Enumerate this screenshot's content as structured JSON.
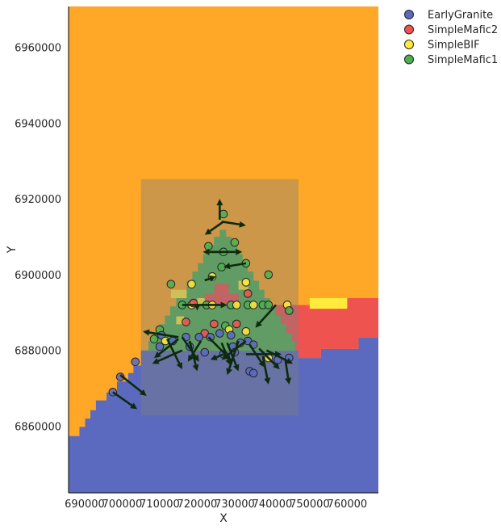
{
  "chart_data": {
    "type": "scatter",
    "xlabel": "X",
    "ylabel": "Y",
    "xlim": [
      685700,
      768300
    ],
    "ylim": [
      6842400,
      6970800
    ],
    "grid": false,
    "legend_placement": "outside-top-right",
    "xticks": [
      {
        "value": 690000,
        "label": "690000"
      },
      {
        "value": 700000,
        "label": "700000"
      },
      {
        "value": 710000,
        "label": "710000"
      },
      {
        "value": 720000,
        "label": "720000"
      },
      {
        "value": 730000,
        "label": "730000"
      },
      {
        "value": 740000,
        "label": "740000"
      },
      {
        "value": 750000,
        "label": "750000"
      },
      {
        "value": 760000,
        "label": "760000"
      }
    ],
    "yticks": [
      {
        "value": 6860000,
        "label": "6860000"
      },
      {
        "value": 6880000,
        "label": "6880000"
      },
      {
        "value": 6900000,
        "label": "6900000"
      },
      {
        "value": 6920000,
        "label": "6920000"
      },
      {
        "value": 6940000,
        "label": "6940000"
      },
      {
        "value": 6960000,
        "label": "6960000"
      }
    ],
    "units": [
      {
        "name": "EarlyGranite",
        "color": "#5b6abf"
      },
      {
        "name": "SimpleMafic2",
        "color": "#ef5350"
      },
      {
        "name": "SimpleBIF",
        "color": "#ffeb3b"
      },
      {
        "name": "SimpleMafic1",
        "color": "#4caf50"
      }
    ],
    "background_color": "#ffa726",
    "region_box": {
      "x": [
        705000,
        747000
      ],
      "y": [
        6862800,
        6925200
      ],
      "color": "#808080",
      "opacity": 0.4
    },
    "granite_boundary": [
      [
        685700,
        6857400
      ],
      [
        688600,
        6857400
      ],
      [
        688600,
        6859800
      ],
      [
        690100,
        6859800
      ],
      [
        690100,
        6862000
      ],
      [
        691500,
        6862000
      ],
      [
        691500,
        6864200
      ],
      [
        693000,
        6864200
      ],
      [
        693000,
        6866800
      ],
      [
        695800,
        6866800
      ],
      [
        695800,
        6868900
      ],
      [
        698600,
        6868900
      ],
      [
        698600,
        6871800
      ],
      [
        701600,
        6871800
      ],
      [
        701600,
        6874000
      ],
      [
        703000,
        6874000
      ],
      [
        703000,
        6876000
      ],
      [
        705000,
        6876000
      ],
      [
        705000,
        6880000
      ],
      [
        747000,
        6880000
      ],
      [
        747000,
        6878000
      ],
      [
        753000,
        6878000
      ],
      [
        753000,
        6880400
      ],
      [
        763000,
        6880400
      ],
      [
        763000,
        6883400
      ],
      [
        768300,
        6883400
      ],
      [
        768300,
        6842400
      ],
      [
        685700,
        6842400
      ]
    ],
    "mafic2_polygon": [
      [
        716000,
        6892000
      ],
      [
        750000,
        6892000
      ],
      [
        750000,
        6891000
      ],
      [
        760000,
        6891000
      ],
      [
        760000,
        6893800
      ],
      [
        768300,
        6893800
      ],
      [
        768300,
        6883400
      ],
      [
        763000,
        6883400
      ],
      [
        763000,
        6880400
      ],
      [
        753000,
        6880400
      ],
      [
        753000,
        6878000
      ],
      [
        747000,
        6878000
      ],
      [
        747000,
        6880000
      ],
      [
        716000,
        6880000
      ]
    ],
    "bif_polygon": [
      [
        750000,
        6891000
      ],
      [
        760000,
        6891000
      ],
      [
        760000,
        6893800
      ],
      [
        750000,
        6893800
      ]
    ],
    "mafic1_steps": [
      {
        "x": [
          726000,
          727600
        ],
        "y": [
          6910000,
          6911800
        ]
      },
      {
        "x": [
          724500,
          729100
        ],
        "y": [
          6907800,
          6910000
        ]
      },
      {
        "x": [
          723000,
          730600
        ],
        "y": [
          6905400,
          6907800
        ]
      },
      {
        "x": [
          721600,
          732000
        ],
        "y": [
          6903000,
          6905400
        ]
      },
      {
        "x": [
          720200,
          733400
        ],
        "y": [
          6900800,
          6903000
        ]
      },
      {
        "x": [
          718700,
          734900
        ],
        "y": [
          6898400,
          6900800
        ]
      },
      {
        "x": [
          717200,
          736400
        ],
        "y": [
          6896000,
          6898400
        ]
      },
      {
        "x": [
          715800,
          737800
        ],
        "y": [
          6893800,
          6896000
        ]
      },
      {
        "x": [
          714400,
          739300
        ],
        "y": [
          6891600,
          6893800
        ]
      },
      {
        "x": [
          712800,
          740700
        ],
        "y": [
          6889200,
          6891600
        ]
      },
      {
        "x": [
          711400,
          742200
        ],
        "y": [
          6886900,
          6889200
        ]
      },
      {
        "x": [
          709900,
          743600
        ],
        "y": [
          6884600,
          6886900
        ]
      },
      {
        "x": [
          708500,
          745100
        ],
        "y": [
          6882400,
          6884600
        ]
      },
      {
        "x": [
          707000,
          746000
        ],
        "y": [
          6880000,
          6882400
        ]
      }
    ],
    "mafic2_dome": [
      {
        "x": [
          724600,
          728400
        ],
        "y": [
          6895000,
          6897600
        ]
      },
      {
        "x": [
          722000,
          731000
        ],
        "y": [
          6892000,
          6895000
        ]
      }
    ],
    "bif_band": [
      {
        "x": [
          713000,
          717200
        ],
        "y": [
          6893800,
          6896000
        ]
      },
      {
        "x": [
          720000,
          722000
        ],
        "y": [
          6891800,
          6893800
        ]
      },
      {
        "x": [
          731000,
          733600
        ],
        "y": [
          6896000,
          6898400
        ]
      },
      {
        "x": [
          714400,
          716500
        ],
        "y": [
          6886900,
          6889000
        ]
      }
    ],
    "points": [
      {
        "unit": "SimpleMafic1",
        "x": 727000,
        "y": 6916000
      },
      {
        "unit": "SimpleMafic1",
        "x": 723000,
        "y": 6907500
      },
      {
        "unit": "SimpleMafic1",
        "x": 730000,
        "y": 6908500
      },
      {
        "unit": "SimpleMafic1",
        "x": 727000,
        "y": 6906000
      },
      {
        "unit": "SimpleMafic1",
        "x": 733000,
        "y": 6903000
      },
      {
        "unit": "SimpleMafic1",
        "x": 726500,
        "y": 6902000
      },
      {
        "unit": "SimpleMafic1",
        "x": 739000,
        "y": 6900000
      },
      {
        "unit": "SimpleBIF",
        "x": 724000,
        "y": 6899500
      },
      {
        "unit": "SimpleMafic1",
        "x": 713000,
        "y": 6897500
      },
      {
        "unit": "SimpleBIF",
        "x": 718500,
        "y": 6897500
      },
      {
        "unit": "SimpleBIF",
        "x": 733000,
        "y": 6898000
      },
      {
        "unit": "SimpleMafic2",
        "x": 733500,
        "y": 6895000
      },
      {
        "unit": "SimpleMafic1",
        "x": 716000,
        "y": 6892000
      },
      {
        "unit": "SimpleBIF",
        "x": 718500,
        "y": 6892000
      },
      {
        "unit": "SimpleMafic2",
        "x": 719000,
        "y": 6892500
      },
      {
        "unit": "SimpleMafic1",
        "x": 722500,
        "y": 6892000
      },
      {
        "unit": "SimpleBIF",
        "x": 724000,
        "y": 6892000
      },
      {
        "unit": "SimpleMafic1",
        "x": 729000,
        "y": 6892000
      },
      {
        "unit": "SimpleBIF",
        "x": 730500,
        "y": 6892000
      },
      {
        "unit": "SimpleMafic1",
        "x": 733500,
        "y": 6892000
      },
      {
        "unit": "SimpleBIF",
        "x": 735000,
        "y": 6892000
      },
      {
        "unit": "SimpleMafic1",
        "x": 737500,
        "y": 6892000
      },
      {
        "unit": "SimpleMafic1",
        "x": 739000,
        "y": 6892000
      },
      {
        "unit": "SimpleBIF",
        "x": 744000,
        "y": 6892000
      },
      {
        "unit": "SimpleMafic1",
        "x": 744500,
        "y": 6890500
      },
      {
        "unit": "SimpleMafic2",
        "x": 717000,
        "y": 6887500
      },
      {
        "unit": "SimpleMafic2",
        "x": 724500,
        "y": 6887000
      },
      {
        "unit": "SimpleMafic1",
        "x": 727500,
        "y": 6886500
      },
      {
        "unit": "SimpleMafic2",
        "x": 730500,
        "y": 6887000
      },
      {
        "unit": "SimpleBIF",
        "x": 728500,
        "y": 6885500
      },
      {
        "unit": "SimpleMafic1",
        "x": 710000,
        "y": 6885500
      },
      {
        "unit": "SimpleBIF",
        "x": 733000,
        "y": 6885000
      },
      {
        "unit": "SimpleMafic2",
        "x": 722000,
        "y": 6884500
      },
      {
        "unit": "SimpleMafic1",
        "x": 708500,
        "y": 6883000
      },
      {
        "unit": "EarlyGranite",
        "x": 710500,
        "y": 6884000
      },
      {
        "unit": "SimpleBIF",
        "x": 711500,
        "y": 6882500
      },
      {
        "unit": "EarlyGranite",
        "x": 713500,
        "y": 6882500
      },
      {
        "unit": "EarlyGranite",
        "x": 717000,
        "y": 6883500
      },
      {
        "unit": "EarlyGranite",
        "x": 720500,
        "y": 6883500
      },
      {
        "unit": "EarlyGranite",
        "x": 723500,
        "y": 6883500
      },
      {
        "unit": "EarlyGranite",
        "x": 726000,
        "y": 6884500
      },
      {
        "unit": "EarlyGranite",
        "x": 729000,
        "y": 6884000
      },
      {
        "unit": "EarlyGranite",
        "x": 733500,
        "y": 6882500
      },
      {
        "unit": "EarlyGranite",
        "x": 731500,
        "y": 6882000
      },
      {
        "unit": "EarlyGranite",
        "x": 735000,
        "y": 6881500
      },
      {
        "unit": "EarlyGranite",
        "x": 718000,
        "y": 6881000
      },
      {
        "unit": "EarlyGranite",
        "x": 710000,
        "y": 6881000
      },
      {
        "unit": "EarlyGranite",
        "x": 729500,
        "y": 6881000
      },
      {
        "unit": "EarlyGranite",
        "x": 722000,
        "y": 6879500
      },
      {
        "unit": "EarlyGranite",
        "x": 727000,
        "y": 6879000
      },
      {
        "unit": "EarlyGranite",
        "x": 730000,
        "y": 6879500
      },
      {
        "unit": "SimpleBIF",
        "x": 739000,
        "y": 6878000
      },
      {
        "unit": "EarlyGranite",
        "x": 741500,
        "y": 6877500
      },
      {
        "unit": "EarlyGranite",
        "x": 744500,
        "y": 6878000
      },
      {
        "unit": "EarlyGranite",
        "x": 703500,
        "y": 6877000
      },
      {
        "unit": "EarlyGranite",
        "x": 734000,
        "y": 6874500
      },
      {
        "unit": "EarlyGranite",
        "x": 735000,
        "y": 6874000
      },
      {
        "unit": "EarlyGranite",
        "x": 699500,
        "y": 6873000
      },
      {
        "unit": "EarlyGranite",
        "x": 697500,
        "y": 6869000
      }
    ],
    "orientation_vectors": [
      {
        "x": 727000,
        "y": 6914000,
        "dx": -5000,
        "dy": -3500
      },
      {
        "x": 726000,
        "y": 6914500,
        "dx": 0,
        "dy": 5500
      },
      {
        "x": 726500,
        "y": 6914000,
        "dx": 6500,
        "dy": -1000
      },
      {
        "x": 727000,
        "y": 6906000,
        "dx": -5500,
        "dy": 0
      },
      {
        "x": 724000,
        "y": 6906000,
        "dx": 8000,
        "dy": 0
      },
      {
        "x": 733000,
        "y": 6903000,
        "dx": -6000,
        "dy": -1000
      },
      {
        "x": 722000,
        "y": 6898500,
        "dx": 3000,
        "dy": 1000
      },
      {
        "x": 716000,
        "y": 6892000,
        "dx": 12000,
        "dy": 0
      },
      {
        "x": 720000,
        "y": 6892000,
        "dx": 0,
        "dy": -1500
      },
      {
        "x": 741000,
        "y": 6892000,
        "dx": -5500,
        "dy": -6000
      },
      {
        "x": 715000,
        "y": 6883500,
        "dx": -9500,
        "dy": 1500
      },
      {
        "x": 715000,
        "y": 6883000,
        "dx": -6500,
        "dy": -5000
      },
      {
        "x": 716000,
        "y": 6880000,
        "dx": -8000,
        "dy": -3500
      },
      {
        "x": 712000,
        "y": 6883000,
        "dx": 4000,
        "dy": -8000
      },
      {
        "x": 716000,
        "y": 6883500,
        "dx": 4500,
        "dy": -6500
      },
      {
        "x": 718000,
        "y": 6882500,
        "dx": 2000,
        "dy": -8000
      },
      {
        "x": 721000,
        "y": 6882500,
        "dx": -3500,
        "dy": -5500
      },
      {
        "x": 723000,
        "y": 6883500,
        "dx": 6000,
        "dy": -6000
      },
      {
        "x": 726500,
        "y": 6882000,
        "dx": 2500,
        "dy": -6000
      },
      {
        "x": 728000,
        "y": 6882000,
        "dx": 3000,
        "dy": -7500
      },
      {
        "x": 731000,
        "y": 6882500,
        "dx": -3000,
        "dy": -9000
      },
      {
        "x": 733000,
        "y": 6882500,
        "dx": -6500,
        "dy": -5000
      },
      {
        "x": 734000,
        "y": 6881500,
        "dx": 4000,
        "dy": -6000
      },
      {
        "x": 736500,
        "y": 6880500,
        "dx": 5500,
        "dy": -5500
      },
      {
        "x": 738500,
        "y": 6880000,
        "dx": 7000,
        "dy": -3500
      },
      {
        "x": 733000,
        "y": 6879000,
        "dx": 9500,
        "dy": 0
      },
      {
        "x": 727000,
        "y": 6879000,
        "dx": -3500,
        "dy": -1500
      },
      {
        "x": 737500,
        "y": 6878500,
        "dx": 1500,
        "dy": -7500
      },
      {
        "x": 743500,
        "y": 6877500,
        "dx": 1000,
        "dy": -6500
      },
      {
        "x": 697500,
        "y": 6869000,
        "dx": 6500,
        "dy": -4500
      },
      {
        "x": 699500,
        "y": 6873500,
        "dx": 7000,
        "dy": -5500
      }
    ]
  }
}
